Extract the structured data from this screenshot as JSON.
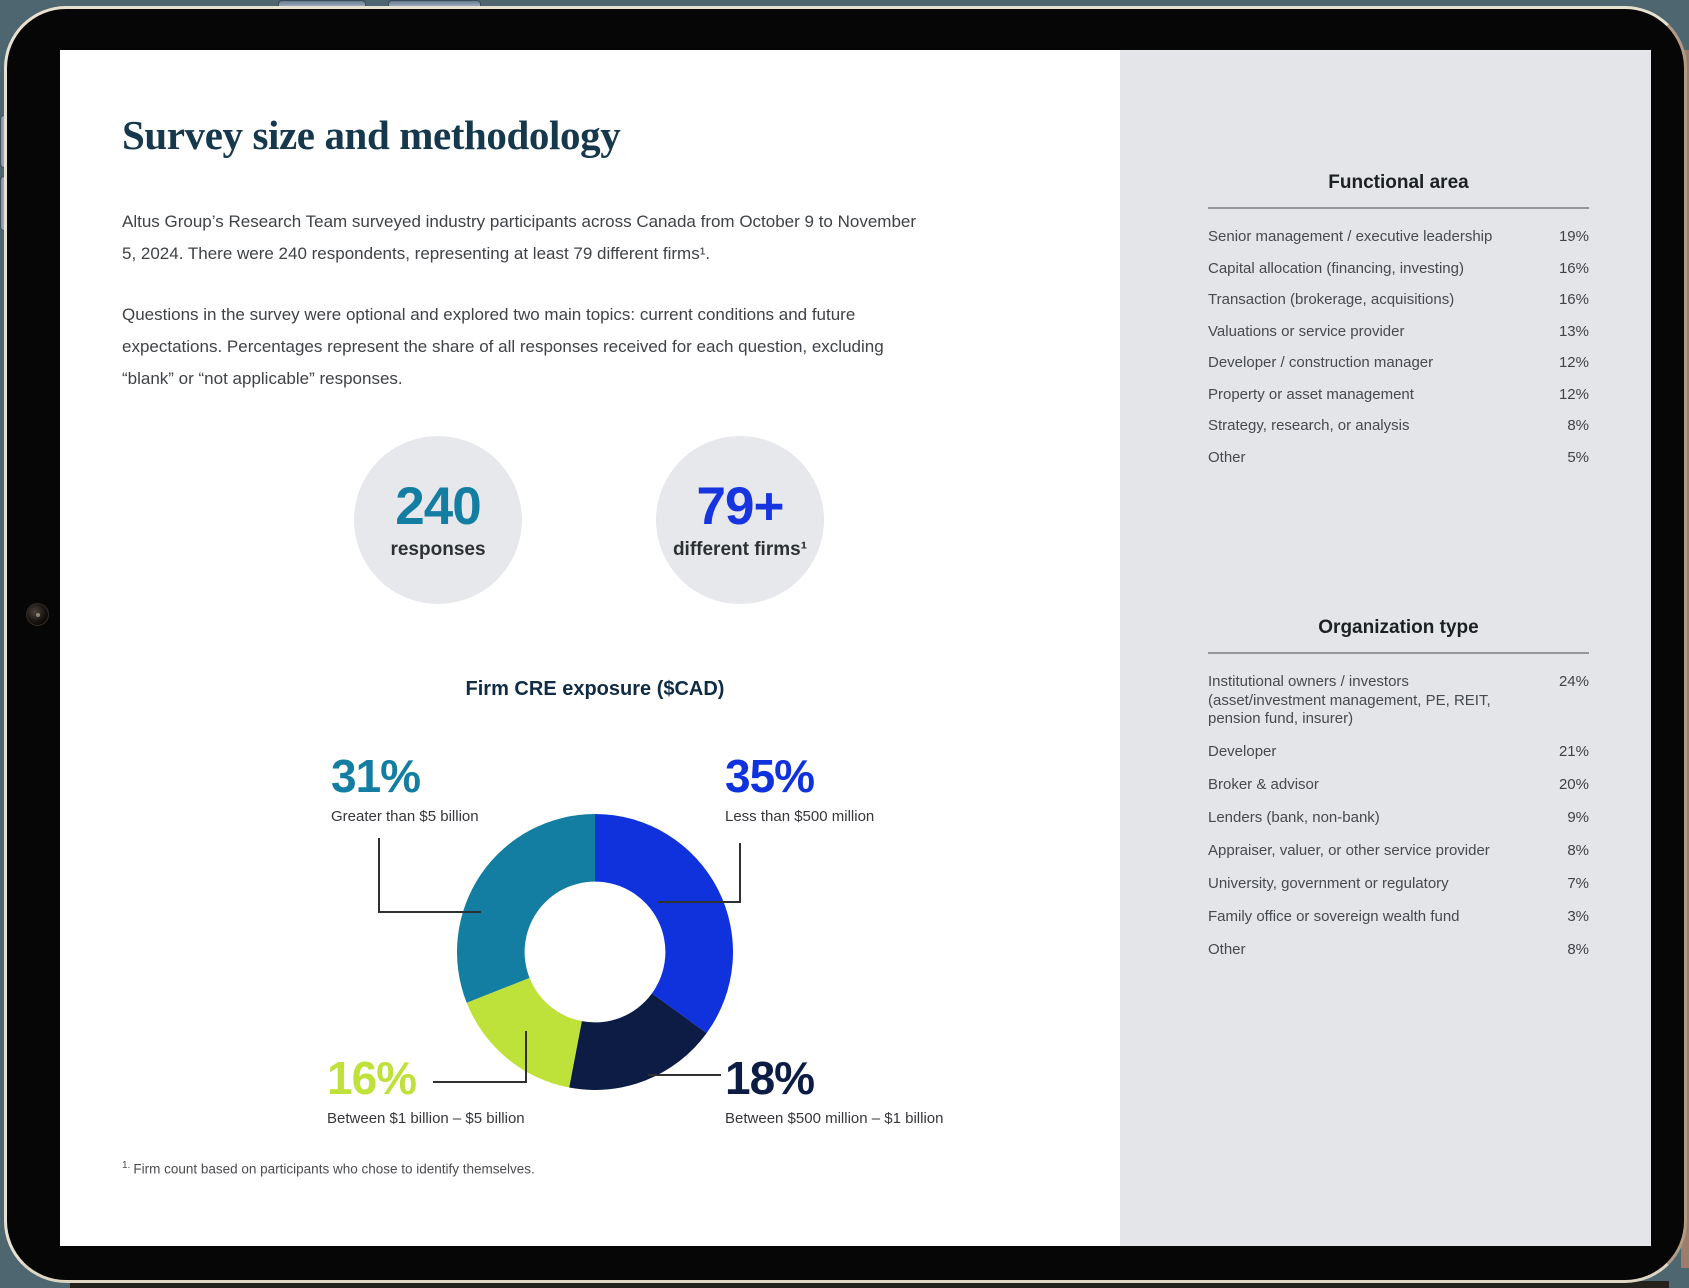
{
  "accent_colors": {
    "teal": "#147ea2",
    "blue": "#1634e0",
    "navy": "#0d1c45",
    "lime": "#bfe23a",
    "heading_navy": "#16384c",
    "sidebar_bg": "#e4e5e9"
  },
  "page": {
    "title": "Survey size and methodology",
    "paragraph1": "Altus Group’s Research Team surveyed industry participants across Canada from October 9 to November 5, 2024. There were 240 respondents, representing at least 79 different firms¹.",
    "paragraph2": "Questions in the survey were optional and explored two main topics: current conditions and future expectations. Percentages represent the share of all responses received for each question, excluding “blank” or “not applicable” responses.",
    "footnote": {
      "marker": "1.",
      "text": "Firm count based on participants who chose to identify themselves."
    }
  },
  "stats": [
    {
      "value": "240",
      "label": "responses",
      "color": "#147ea2"
    },
    {
      "value": "79+",
      "label": "different firms¹",
      "color": "#1634e0"
    }
  ],
  "chart_data": {
    "type": "pie",
    "subtype": "donut",
    "title": "Firm CRE exposure ($CAD)",
    "start_angle_deg": 0,
    "direction": "clockwise",
    "inner_radius_ratio": 0.51,
    "segments": [
      {
        "label": "Less than $500 million",
        "value": 35,
        "pct": "35%",
        "color": "#1032dd"
      },
      {
        "label": "Between $500 million – $1 billion",
        "value": 18,
        "pct": "18%",
        "color": "#0d1c45"
      },
      {
        "label": "Between $1 billion – $5 billion",
        "value": 16,
        "pct": "16%",
        "color": "#bfe23a"
      },
      {
        "label": "Greater than $5 billion",
        "value": 31,
        "pct": "31%",
        "color": "#147ea2"
      }
    ]
  },
  "sidebar": {
    "functional_area": {
      "title": "Functional area",
      "rows": [
        {
          "label": "Senior management / executive leadership",
          "value": "19%"
        },
        {
          "label": "Capital allocation (financing, investing)",
          "value": "16%"
        },
        {
          "label": "Transaction (brokerage, acquisitions)",
          "value": "16%"
        },
        {
          "label": "Valuations or service provider",
          "value": "13%"
        },
        {
          "label": "Developer / construction manager",
          "value": "12%"
        },
        {
          "label": "Property or asset management",
          "value": "12%"
        },
        {
          "label": "Strategy, research, or analysis",
          "value": "8%"
        },
        {
          "label": "Other",
          "value": "5%"
        }
      ]
    },
    "organization_type": {
      "title": "Organization type",
      "rows": [
        {
          "label": "Institutional owners / investors (asset/investment management, PE, REIT, pension fund, insurer)",
          "value": "24%"
        },
        {
          "label": "Developer",
          "value": "21%"
        },
        {
          "label": "Broker & advisor",
          "value": "20%"
        },
        {
          "label": "Lenders (bank, non-bank)",
          "value": "9%"
        },
        {
          "label": "Appraiser, valuer, or other service provider",
          "value": "8%"
        },
        {
          "label": "University, government or regulatory",
          "value": "7%"
        },
        {
          "label": "Family office or sovereign wealth fund",
          "value": "3%"
        },
        {
          "label": "Other",
          "value": "8%"
        }
      ]
    }
  }
}
